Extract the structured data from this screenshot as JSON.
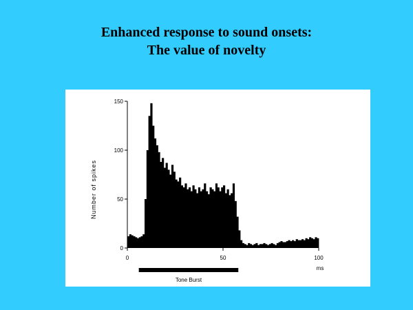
{
  "slide": {
    "title_line1": "Enhanced response to sound onsets:",
    "title_line2": "The value of novelty"
  },
  "colors": {
    "background": "#33ccff",
    "panel": "#ffffff",
    "bars": "#000000"
  },
  "chart_data": {
    "type": "bar",
    "title": "",
    "xlabel": "ms",
    "ylabel": "Number of spikes",
    "xlim": [
      0,
      100
    ],
    "ylim": [
      0,
      150
    ],
    "x_ticks": [
      0,
      50,
      100
    ],
    "x_tick_labels": [
      "0",
      "50",
      "100"
    ],
    "y_ticks": [
      0,
      50,
      100,
      150
    ],
    "y_tick_labels": [
      "0",
      "50",
      "100",
      "150"
    ],
    "grid": false,
    "stimulus": {
      "label": "Tone Burst",
      "start": 6,
      "end": 58
    },
    "bin_width": 1,
    "x": [
      0,
      1,
      2,
      3,
      4,
      5,
      6,
      7,
      8,
      9,
      10,
      11,
      12,
      13,
      14,
      15,
      16,
      17,
      18,
      19,
      20,
      21,
      22,
      23,
      24,
      25,
      26,
      27,
      28,
      29,
      30,
      31,
      32,
      33,
      34,
      35,
      36,
      37,
      38,
      39,
      40,
      41,
      42,
      43,
      44,
      45,
      46,
      47,
      48,
      49,
      50,
      51,
      52,
      53,
      54,
      55,
      56,
      57,
      58,
      59,
      60,
      61,
      62,
      63,
      64,
      65,
      66,
      67,
      68,
      69,
      70,
      71,
      72,
      73,
      74,
      75,
      76,
      77,
      78,
      79,
      80,
      81,
      82,
      83,
      84,
      85,
      86,
      87,
      88,
      89,
      90,
      91,
      92,
      93,
      94,
      95,
      96,
      97,
      98,
      99
    ],
    "values": [
      12,
      14,
      13,
      12,
      11,
      10,
      11,
      12,
      14,
      50,
      100,
      135,
      148,
      125,
      112,
      105,
      98,
      88,
      92,
      82,
      87,
      80,
      75,
      85,
      78,
      70,
      68,
      72,
      64,
      62,
      66,
      60,
      62,
      58,
      64,
      60,
      56,
      62,
      58,
      60,
      66,
      58,
      55,
      62,
      60,
      58,
      66,
      62,
      58,
      62,
      64,
      56,
      60,
      54,
      56,
      66,
      48,
      32,
      18,
      8,
      5,
      4,
      3,
      5,
      4,
      3,
      4,
      5,
      3,
      4,
      4,
      5,
      4,
      3,
      4,
      5,
      4,
      3,
      5,
      6,
      7,
      6,
      6,
      7,
      8,
      7,
      8,
      7,
      9,
      8,
      8,
      9,
      8,
      10,
      9,
      11,
      10,
      9,
      11,
      10
    ]
  }
}
